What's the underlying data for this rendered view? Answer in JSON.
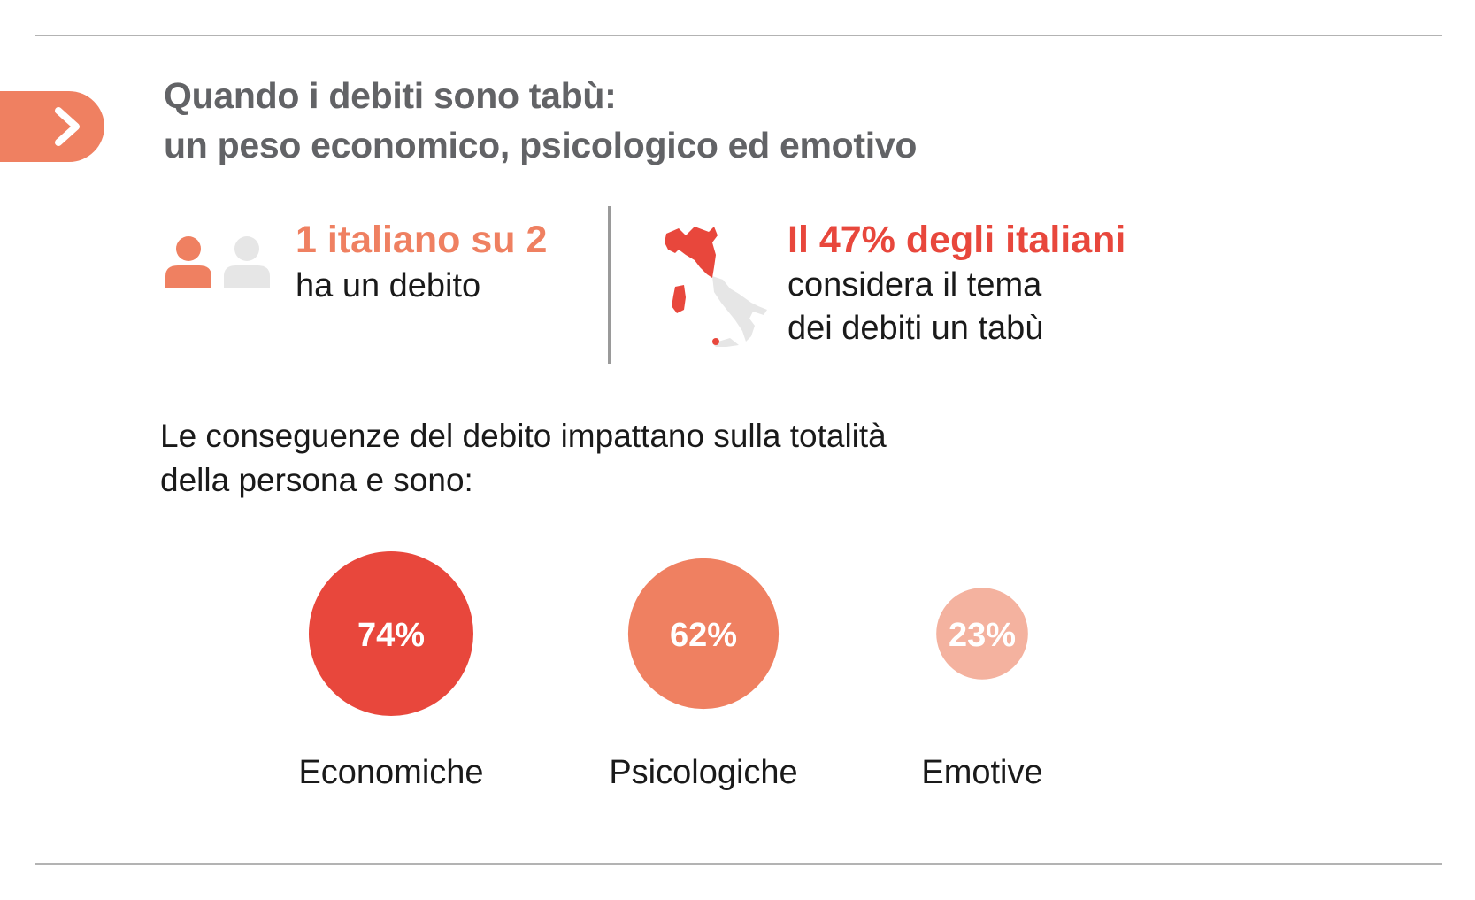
{
  "header": {
    "title_line1": "Quando i debiti sono tabù:",
    "title_line2": "un peso economico, psicologico ed emotivo",
    "badge_icon": "chevron-right-icon"
  },
  "stats": {
    "left": {
      "icon": "people-icon",
      "highlight": "1 italiano su 2",
      "text": "ha un debito"
    },
    "right": {
      "icon": "italy-map-icon",
      "highlight": "Il 47% degli italiani",
      "line1": "considera il tema",
      "line2": "dei debiti un tabù"
    }
  },
  "intro": {
    "line1": "Le conseguenze del debito impattano sulla totalità",
    "line2": "della persona e sono:"
  },
  "colors": {
    "accent_orange": "#ef8061",
    "accent_red": "#e8473c",
    "light_salmon": "#f4b29f",
    "light_gray": "#e6e6e6"
  },
  "chart_data": {
    "type": "bubble",
    "categories": [
      "Economiche",
      "Psicologiche",
      "Emotive"
    ],
    "values": [
      74,
      62,
      23
    ],
    "value_labels": [
      "74%",
      "62%",
      "23%"
    ],
    "colors": [
      "#e8473c",
      "#ef8061",
      "#f4b29f"
    ]
  }
}
